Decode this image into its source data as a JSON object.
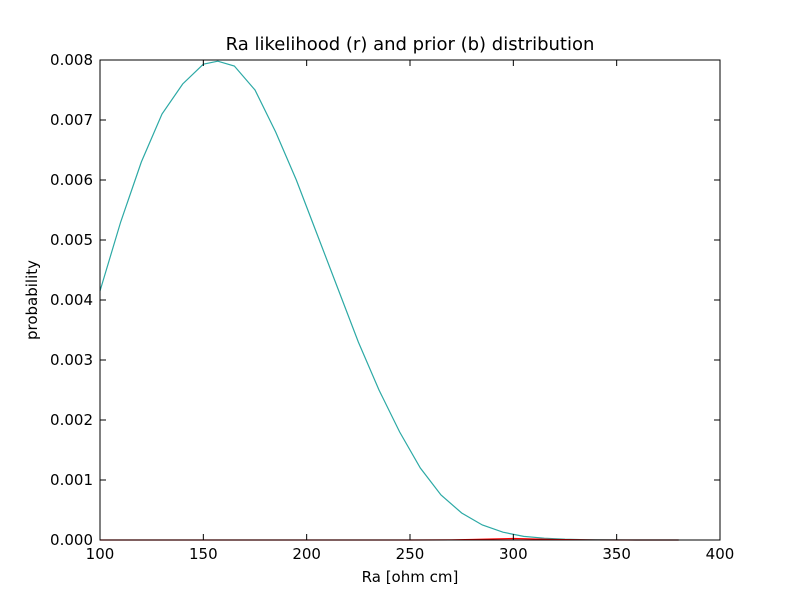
{
  "chart_data": {
    "type": "line",
    "title": "Ra likelihood (r) and prior (b) distribution",
    "xlabel": "Ra [ohm cm]",
    "ylabel": "probability",
    "xlim": [
      100,
      400
    ],
    "ylim": [
      0,
      0.008
    ],
    "xticks": [
      "100",
      "150",
      "200",
      "250",
      "300",
      "350",
      "400"
    ],
    "yticks": [
      "0.000",
      "0.001",
      "0.002",
      "0.003",
      "0.004",
      "0.005",
      "0.006",
      "0.007",
      "0.008"
    ],
    "grid": false,
    "series": [
      {
        "color": "#2ca9a5",
        "x": [
          100,
          110,
          120,
          130,
          140,
          150,
          157,
          165,
          175,
          185,
          195,
          205,
          215,
          225,
          235,
          245,
          255,
          265,
          275,
          285,
          295,
          305,
          315,
          325,
          335,
          345,
          355,
          365,
          380
        ],
        "y": [
          0.00415,
          0.0053,
          0.0063,
          0.0071,
          0.0076,
          0.00793,
          0.00798,
          0.0079,
          0.0075,
          0.0068,
          0.006,
          0.0051,
          0.0042,
          0.0033,
          0.0025,
          0.0018,
          0.0012,
          0.00075,
          0.00045,
          0.00025,
          0.00013,
          6e-05,
          3e-05,
          1.3e-05,
          5e-06,
          2e-06,
          7e-07,
          2e-07,
          0.0
        ]
      },
      {
        "color": "#ff0000",
        "x": [
          100,
          250,
          270,
          280,
          290,
          300,
          310,
          320,
          340,
          380
        ],
        "y": [
          0.0,
          0.0,
          2e-06,
          8e-06,
          1.8e-05,
          2.5e-05,
          1.8e-05,
          8e-06,
          1e-06,
          0.0
        ]
      }
    ]
  }
}
